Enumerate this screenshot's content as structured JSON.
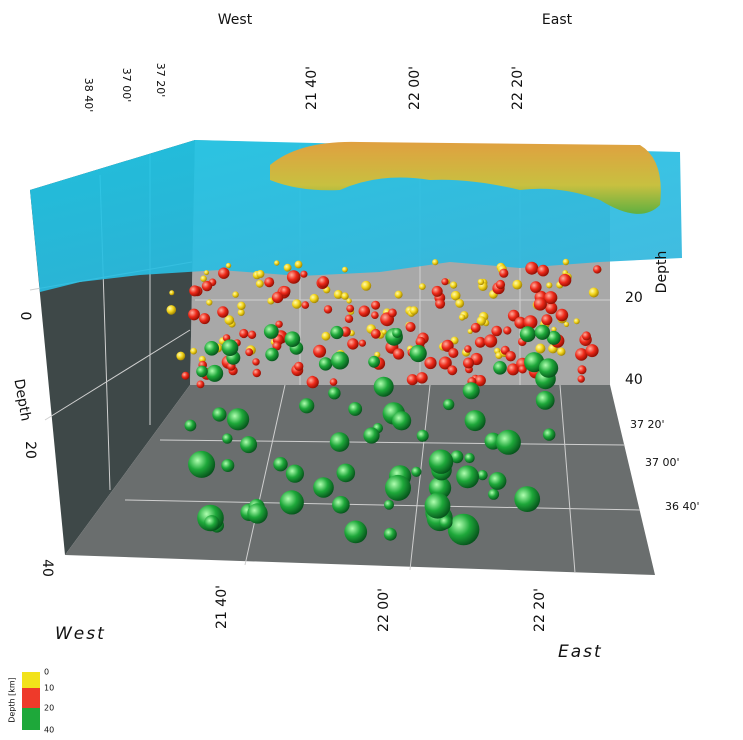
{
  "top_labels": {
    "west": "West",
    "east": "East"
  },
  "top_longitudes": [
    "21 40'",
    "22 00'",
    "22 20'"
  ],
  "top_latitudes": [
    "38 40'",
    "37 00'",
    "37 20'"
  ],
  "right_depth": {
    "label": "Depth",
    "ticks": [
      "20",
      "40"
    ]
  },
  "left_depth": {
    "label": "Depth",
    "ticks": [
      "0",
      "20",
      "40"
    ]
  },
  "right_latitudes": [
    "37 20'",
    "37 00'",
    "36 40'"
  ],
  "bottom_longitudes": [
    "21 40'",
    "22 00'",
    "22 20'"
  ],
  "bottom_labels": {
    "west": "West",
    "east": "East"
  },
  "legend": {
    "title": "Depth [km]",
    "ticks": [
      "0",
      "10",
      "20",
      "40"
    ],
    "colors": [
      "#f2e21a",
      "#ee3a2a",
      "#1ea83a"
    ]
  }
}
